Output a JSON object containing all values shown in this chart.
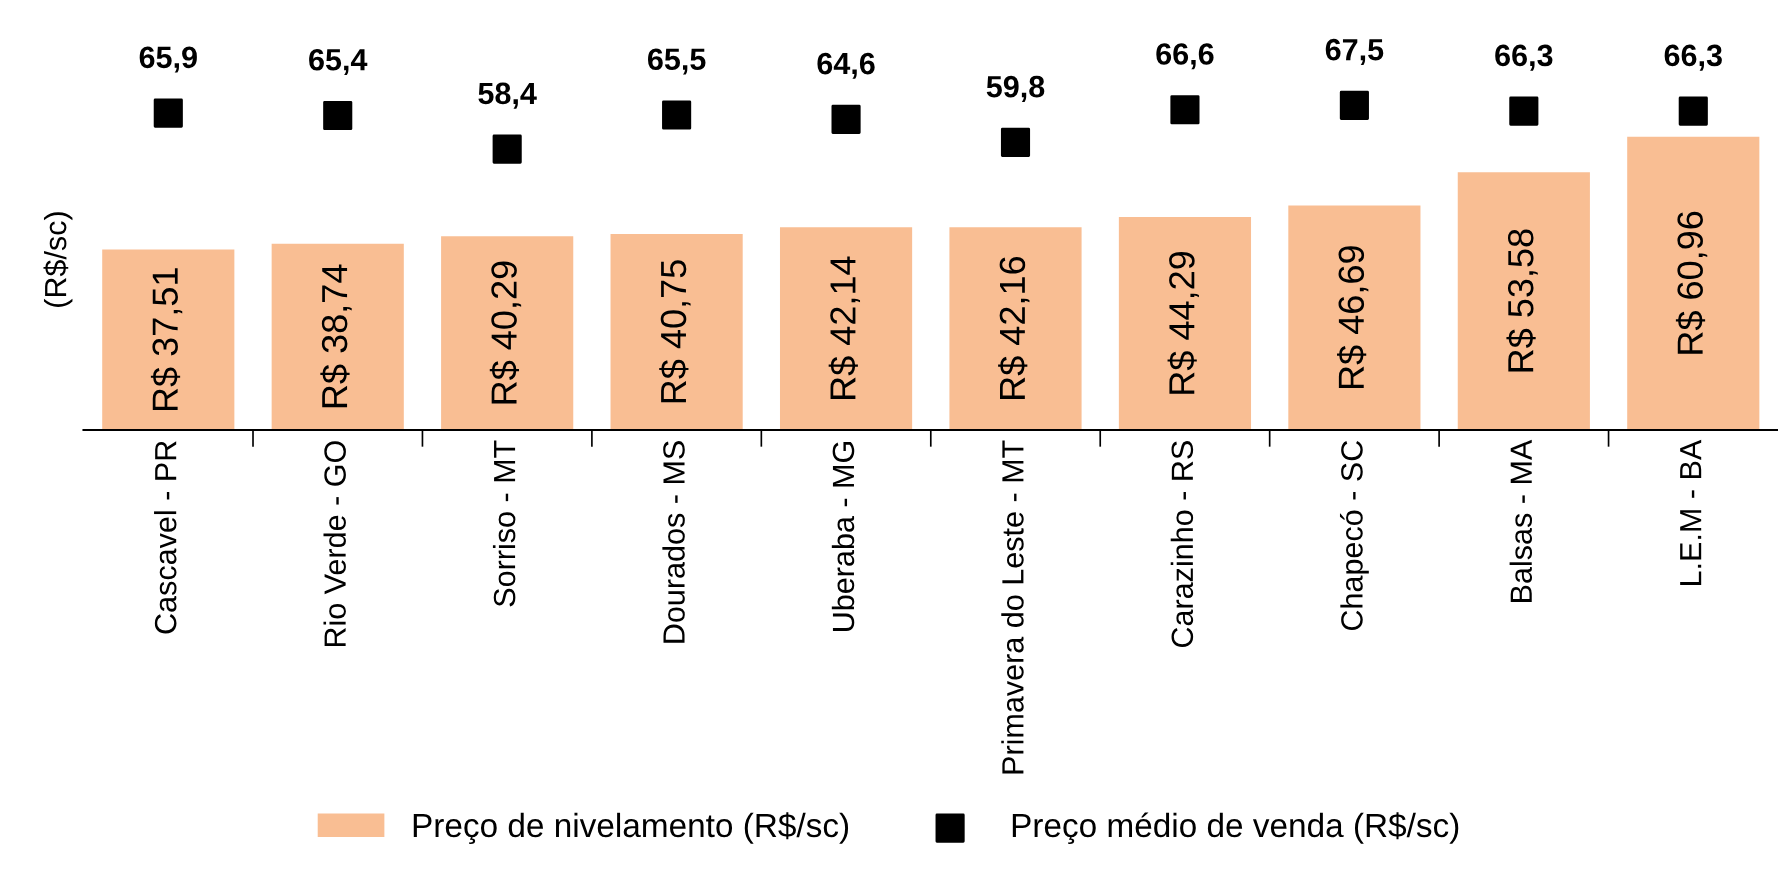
{
  "chart_data": {
    "type": "bar",
    "ylabel": "(R$/sc)",
    "categories": [
      "Cascavel - PR",
      "Rio Verde - GO",
      "Sorriso - MT",
      "Dourados - MS",
      "Uberaba - MG",
      "Primavera do Leste - MT",
      "Carazinho - RS",
      "Chapecó - SC",
      "Balsas - MA",
      "L.E.M - BA"
    ],
    "series": [
      {
        "name": "Preço de nivelamento (R$/sc)",
        "color": "#f9be93",
        "values": [
          37.51,
          38.74,
          40.29,
          40.75,
          42.14,
          42.16,
          44.29,
          46.69,
          53.58,
          60.96
        ],
        "value_labels": [
          "R$ 37,51",
          "R$ 38,74",
          "R$ 40,29",
          "R$ 40,75",
          "R$ 42,14",
          "R$ 42,16",
          "R$ 44,29",
          "R$ 46,69",
          "R$ 53,58",
          "R$ 60,96"
        ]
      },
      {
        "name": "Preço médio de venda (R$/sc)",
        "type": "scatter",
        "marker": "square",
        "color": "#000000",
        "values": [
          65.9,
          65.4,
          58.4,
          65.5,
          64.6,
          59.8,
          66.6,
          67.5,
          66.3,
          66.3
        ],
        "value_labels": [
          "65,9",
          "65,4",
          "58,4",
          "65,5",
          "64,6",
          "59,8",
          "66,6",
          "67,5",
          "66,3",
          "66,3"
        ]
      }
    ],
    "tick_labels": "x",
    "grid": false,
    "legend": "bottom"
  }
}
